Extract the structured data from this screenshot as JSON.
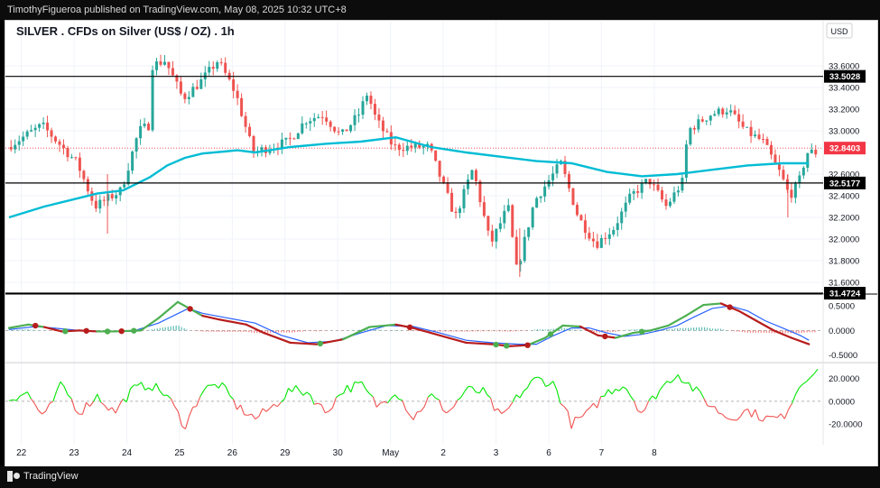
{
  "header": {
    "attribution": "TimothyFigueroa published on TradingView.com, May 08, 2025 10:32 UTC+8"
  },
  "footer": {
    "brand": "TradingView",
    "logo_icon": "tradingview-logo-icon"
  },
  "colors": {
    "candle_up": "#26a69a",
    "candle_down": "#ef5350",
    "ma": "#00bcd4",
    "osc_fast": "#4caf50",
    "osc_slow": "#2962ff",
    "osc_bear": "#b71c1c",
    "hist_pos": "#26a69a",
    "hist_neg": "#ef5350",
    "mom_up": "#00e600",
    "mom_down": "#ef5350",
    "level": "#000000",
    "price_tag": "#f23645"
  },
  "chart_data": [
    {
      "type": "candlestick",
      "title": "SILVER . CFDs on Silver (US$ / OZ) . 1h",
      "currency_label": "USD",
      "xticks": [
        "22",
        "23",
        "24",
        "25",
        "26",
        "29",
        "30",
        "May",
        "2",
        "3",
        "6",
        "7",
        "8"
      ],
      "y_ticks": [
        33.6,
        33.4,
        33.2,
        33.0,
        32.6,
        32.4,
        32.2,
        32.0,
        31.8,
        31.6
      ],
      "y_tick_labels": [
        "33.6000",
        "33.4000",
        "33.2000",
        "33.0000",
        "32.6000",
        "32.4000",
        "32.2000",
        "32.0000",
        "31.8000",
        "31.6000"
      ],
      "ylim": [
        31.55,
        33.75
      ],
      "horizontal_levels": [
        {
          "value": 33.5028,
          "label": "33.5028"
        },
        {
          "value": 32.5177,
          "label": "32.5177"
        },
        {
          "value": 31.4724,
          "label": "31.4724"
        }
      ],
      "last_price": {
        "value": 32.8403,
        "label": "32.8403"
      },
      "anchors": [
        [
          0,
          32.85
        ],
        [
          2,
          33.05
        ],
        [
          4,
          32.7
        ],
        [
          5,
          32.3
        ],
        [
          6.5,
          32.45
        ],
        [
          7.5,
          33.0
        ],
        [
          8.05,
          33.05
        ],
        [
          8.2,
          33.6
        ],
        [
          9,
          33.65
        ],
        [
          10,
          33.3
        ],
        [
          11,
          33.45
        ],
        [
          12,
          33.65
        ],
        [
          13,
          33.35
        ],
        [
          14,
          32.8
        ],
        [
          16,
          32.9
        ],
        [
          17,
          33.1
        ],
        [
          18,
          33.15
        ],
        [
          19,
          32.95
        ],
        [
          20,
          33.15
        ],
        [
          20.5,
          33.35
        ],
        [
          21,
          33.1
        ],
        [
          22,
          32.85
        ],
        [
          24,
          32.85
        ],
        [
          25.5,
          32.2
        ],
        [
          26.5,
          32.65
        ],
        [
          27.5,
          31.95
        ],
        [
          28.5,
          32.3
        ],
        [
          29,
          31.7
        ],
        [
          30,
          32.35
        ],
        [
          31.5,
          32.7
        ],
        [
          32.5,
          32.2
        ],
        [
          33.5,
          31.95
        ],
        [
          34.5,
          32.1
        ],
        [
          35.5,
          32.4
        ],
        [
          36.5,
          32.55
        ],
        [
          37.5,
          32.3
        ],
        [
          38.5,
          32.55
        ],
        [
          38.7,
          33.0
        ],
        [
          40,
          33.15
        ],
        [
          41,
          33.2
        ],
        [
          42,
          33.0
        ],
        [
          43,
          32.9
        ],
        [
          44,
          32.6
        ],
        [
          44.5,
          32.4
        ],
        [
          45,
          32.5
        ],
        [
          45.5,
          32.8
        ]
      ],
      "moving_average": [
        [
          0,
          32.2
        ],
        [
          2,
          32.3
        ],
        [
          4,
          32.38
        ],
        [
          5,
          32.42
        ],
        [
          6.5,
          32.45
        ],
        [
          8,
          32.57
        ],
        [
          9,
          32.68
        ],
        [
          10,
          32.75
        ],
        [
          11,
          32.79
        ],
        [
          13,
          32.82
        ],
        [
          14,
          32.8
        ],
        [
          16,
          32.85
        ],
        [
          18,
          32.88
        ],
        [
          20,
          32.9
        ],
        [
          22,
          32.94
        ],
        [
          24,
          32.85
        ],
        [
          26,
          32.8
        ],
        [
          28,
          32.76
        ],
        [
          30,
          32.72
        ],
        [
          32,
          32.7
        ],
        [
          34,
          32.62
        ],
        [
          36,
          32.58
        ],
        [
          38,
          32.6
        ],
        [
          40,
          32.64
        ],
        [
          42,
          32.68
        ],
        [
          44,
          32.7
        ],
        [
          45.5,
          32.7
        ]
      ]
    },
    {
      "type": "line",
      "name": "oscillator",
      "y_ticks": [
        0.5,
        0.0,
        -0.5
      ],
      "y_tick_labels": [
        "0.5000",
        "0.0000",
        "-0.5000"
      ],
      "ylim": [
        -0.6,
        0.65
      ],
      "fast": [
        [
          0,
          0.05
        ],
        [
          1.1,
          0.12
        ],
        [
          2,
          0.07
        ],
        [
          3,
          -0.02
        ],
        [
          4,
          0.0
        ],
        [
          5,
          -0.02
        ],
        [
          6,
          -0.02
        ],
        [
          7.5,
          0.0
        ],
        [
          8.5,
          0.25
        ],
        [
          9.6,
          0.58
        ],
        [
          11,
          0.3
        ],
        [
          12,
          0.22
        ],
        [
          13.5,
          0.12
        ],
        [
          14.5,
          -0.05
        ],
        [
          16,
          -0.25
        ],
        [
          17.5,
          -0.28
        ],
        [
          19,
          -0.18
        ],
        [
          20.5,
          0.07
        ],
        [
          22,
          0.12
        ],
        [
          23,
          0.05
        ],
        [
          24,
          -0.05
        ],
        [
          25,
          -0.15
        ],
        [
          26,
          -0.25
        ],
        [
          27.5,
          -0.28
        ],
        [
          28.5,
          -0.32
        ],
        [
          29.5,
          -0.3
        ],
        [
          30.5,
          -0.15
        ],
        [
          31.5,
          0.1
        ],
        [
          32.5,
          0.08
        ],
        [
          33.5,
          -0.1
        ],
        [
          34.5,
          -0.15
        ],
        [
          35.5,
          -0.05
        ],
        [
          36.5,
          0.0
        ],
        [
          37.5,
          0.1
        ],
        [
          38.5,
          0.3
        ],
        [
          39.5,
          0.52
        ],
        [
          40.5,
          0.55
        ],
        [
          41.5,
          0.4
        ],
        [
          42.5,
          0.2
        ],
        [
          43.5,
          0.0
        ],
        [
          44.5,
          -0.15
        ],
        [
          45.5,
          -0.28
        ]
      ],
      "slow": [
        [
          0,
          0.02
        ],
        [
          1.5,
          0.08
        ],
        [
          2.5,
          0.05
        ],
        [
          4,
          0.0
        ],
        [
          5.5,
          -0.02
        ],
        [
          7,
          -0.02
        ],
        [
          8.5,
          0.15
        ],
        [
          10.2,
          0.45
        ],
        [
          11,
          0.35
        ],
        [
          12.5,
          0.25
        ],
        [
          14,
          0.15
        ],
        [
          15.5,
          -0.1
        ],
        [
          17,
          -0.25
        ],
        [
          18.5,
          -0.22
        ],
        [
          20,
          -0.05
        ],
        [
          21.5,
          0.1
        ],
        [
          23,
          0.08
        ],
        [
          24.5,
          -0.05
        ],
        [
          26,
          -0.2
        ],
        [
          27.5,
          -0.25
        ],
        [
          29,
          -0.28
        ],
        [
          30,
          -0.28
        ],
        [
          31,
          -0.1
        ],
        [
          32,
          0.05
        ],
        [
          33,
          0.05
        ],
        [
          34,
          -0.05
        ],
        [
          35,
          -0.12
        ],
        [
          36,
          -0.08
        ],
        [
          37,
          0.0
        ],
        [
          38,
          0.1
        ],
        [
          39,
          0.28
        ],
        [
          40,
          0.45
        ],
        [
          41,
          0.5
        ],
        [
          42,
          0.4
        ],
        [
          43,
          0.2
        ],
        [
          44,
          0.05
        ],
        [
          45,
          -0.1
        ],
        [
          45.5,
          -0.2
        ]
      ],
      "cross_dots": [
        {
          "x": 1.5,
          "color": "#b71c1c"
        },
        {
          "x": 3.2,
          "color": "#4caf50"
        },
        {
          "x": 4.4,
          "color": "#b71c1c"
        },
        {
          "x": 5.6,
          "color": "#4caf50"
        },
        {
          "x": 6.4,
          "color": "#b71c1c"
        },
        {
          "x": 7.1,
          "color": "#4caf50"
        },
        {
          "x": 10.3,
          "color": "#b71c1c"
        },
        {
          "x": 17.7,
          "color": "#4caf50"
        },
        {
          "x": 22.8,
          "color": "#b71c1c"
        },
        {
          "x": 27.7,
          "color": "#4caf50"
        },
        {
          "x": 28.3,
          "color": "#4caf50"
        },
        {
          "x": 29.5,
          "color": "#b71c1c"
        },
        {
          "x": 30.8,
          "color": "#4caf50"
        },
        {
          "x": 33.9,
          "color": "#b71c1c"
        },
        {
          "x": 36.0,
          "color": "#4caf50"
        },
        {
          "x": 41.0,
          "color": "#b71c1c"
        }
      ]
    },
    {
      "type": "line",
      "name": "momentum",
      "y_ticks": [
        20.0,
        0.0,
        -20.0
      ],
      "y_tick_labels": [
        "20.0000",
        "0.0000",
        "-20.0000"
      ],
      "ylim": [
        -35,
        30
      ],
      "values": [
        [
          0,
          2
        ],
        [
          1,
          8
        ],
        [
          2,
          -15
        ],
        [
          3,
          15
        ],
        [
          4,
          -10
        ],
        [
          5,
          5
        ],
        [
          6,
          -10
        ],
        [
          7,
          10
        ],
        [
          8,
          15
        ],
        [
          9,
          5
        ],
        [
          10,
          -22
        ],
        [
          11,
          10
        ],
        [
          12,
          15
        ],
        [
          13,
          -5
        ],
        [
          14,
          -15
        ],
        [
          15,
          -5
        ],
        [
          16,
          10
        ],
        [
          17,
          8
        ],
        [
          18,
          -10
        ],
        [
          19,
          10
        ],
        [
          20,
          15
        ],
        [
          21,
          -5
        ],
        [
          22,
          10
        ],
        [
          23,
          -15
        ],
        [
          24,
          5
        ],
        [
          25,
          -10
        ],
        [
          26,
          10
        ],
        [
          27,
          8
        ],
        [
          28,
          -15
        ],
        [
          29,
          5
        ],
        [
          30,
          20
        ],
        [
          31,
          15
        ],
        [
          32,
          -20
        ],
        [
          33,
          -10
        ],
        [
          34,
          8
        ],
        [
          35,
          15
        ],
        [
          36,
          -10
        ],
        [
          37,
          10
        ],
        [
          38,
          25
        ],
        [
          39,
          10
        ],
        [
          40,
          -5
        ],
        [
          41,
          -15
        ],
        [
          42,
          -8
        ],
        [
          43,
          -15
        ],
        [
          44,
          -15
        ],
        [
          45,
          15
        ],
        [
          45.5,
          24
        ]
      ]
    }
  ]
}
